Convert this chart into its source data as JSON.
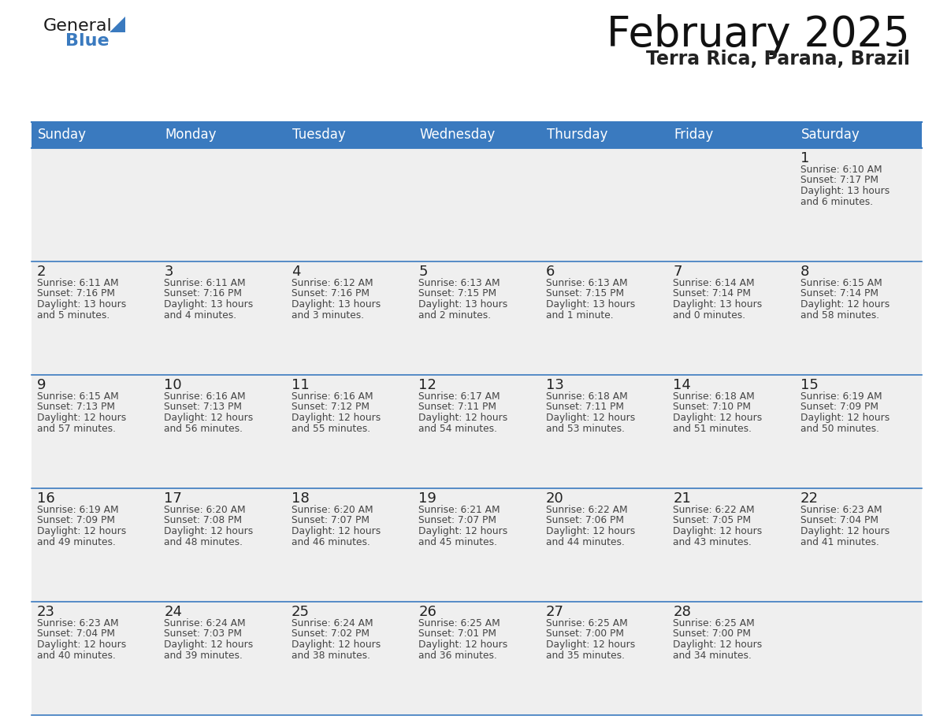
{
  "title": "February 2025",
  "subtitle": "Terra Rica, Parana, Brazil",
  "header_color": "#3a7abf",
  "header_text_color": "#ffffff",
  "day_names": [
    "Sunday",
    "Monday",
    "Tuesday",
    "Wednesday",
    "Thursday",
    "Friday",
    "Saturday"
  ],
  "cell_bg_color": "#efefef",
  "border_color": "#3a7abf",
  "day_num_color": "#222222",
  "info_text_color": "#444444",
  "calendar": [
    [
      null,
      null,
      null,
      null,
      null,
      null,
      {
        "day": 1,
        "sunrise": "6:10 AM",
        "sunset": "7:17 PM",
        "daylight": "13 hours\nand 6 minutes."
      }
    ],
    [
      {
        "day": 2,
        "sunrise": "6:11 AM",
        "sunset": "7:16 PM",
        "daylight": "13 hours\nand 5 minutes."
      },
      {
        "day": 3,
        "sunrise": "6:11 AM",
        "sunset": "7:16 PM",
        "daylight": "13 hours\nand 4 minutes."
      },
      {
        "day": 4,
        "sunrise": "6:12 AM",
        "sunset": "7:16 PM",
        "daylight": "13 hours\nand 3 minutes."
      },
      {
        "day": 5,
        "sunrise": "6:13 AM",
        "sunset": "7:15 PM",
        "daylight": "13 hours\nand 2 minutes."
      },
      {
        "day": 6,
        "sunrise": "6:13 AM",
        "sunset": "7:15 PM",
        "daylight": "13 hours\nand 1 minute."
      },
      {
        "day": 7,
        "sunrise": "6:14 AM",
        "sunset": "7:14 PM",
        "daylight": "13 hours\nand 0 minutes."
      },
      {
        "day": 8,
        "sunrise": "6:15 AM",
        "sunset": "7:14 PM",
        "daylight": "12 hours\nand 58 minutes."
      }
    ],
    [
      {
        "day": 9,
        "sunrise": "6:15 AM",
        "sunset": "7:13 PM",
        "daylight": "12 hours\nand 57 minutes."
      },
      {
        "day": 10,
        "sunrise": "6:16 AM",
        "sunset": "7:13 PM",
        "daylight": "12 hours\nand 56 minutes."
      },
      {
        "day": 11,
        "sunrise": "6:16 AM",
        "sunset": "7:12 PM",
        "daylight": "12 hours\nand 55 minutes."
      },
      {
        "day": 12,
        "sunrise": "6:17 AM",
        "sunset": "7:11 PM",
        "daylight": "12 hours\nand 54 minutes."
      },
      {
        "day": 13,
        "sunrise": "6:18 AM",
        "sunset": "7:11 PM",
        "daylight": "12 hours\nand 53 minutes."
      },
      {
        "day": 14,
        "sunrise": "6:18 AM",
        "sunset": "7:10 PM",
        "daylight": "12 hours\nand 51 minutes."
      },
      {
        "day": 15,
        "sunrise": "6:19 AM",
        "sunset": "7:09 PM",
        "daylight": "12 hours\nand 50 minutes."
      }
    ],
    [
      {
        "day": 16,
        "sunrise": "6:19 AM",
        "sunset": "7:09 PM",
        "daylight": "12 hours\nand 49 minutes."
      },
      {
        "day": 17,
        "sunrise": "6:20 AM",
        "sunset": "7:08 PM",
        "daylight": "12 hours\nand 48 minutes."
      },
      {
        "day": 18,
        "sunrise": "6:20 AM",
        "sunset": "7:07 PM",
        "daylight": "12 hours\nand 46 minutes."
      },
      {
        "day": 19,
        "sunrise": "6:21 AM",
        "sunset": "7:07 PM",
        "daylight": "12 hours\nand 45 minutes."
      },
      {
        "day": 20,
        "sunrise": "6:22 AM",
        "sunset": "7:06 PM",
        "daylight": "12 hours\nand 44 minutes."
      },
      {
        "day": 21,
        "sunrise": "6:22 AM",
        "sunset": "7:05 PM",
        "daylight": "12 hours\nand 43 minutes."
      },
      {
        "day": 22,
        "sunrise": "6:23 AM",
        "sunset": "7:04 PM",
        "daylight": "12 hours\nand 41 minutes."
      }
    ],
    [
      {
        "day": 23,
        "sunrise": "6:23 AM",
        "sunset": "7:04 PM",
        "daylight": "12 hours\nand 40 minutes."
      },
      {
        "day": 24,
        "sunrise": "6:24 AM",
        "sunset": "7:03 PM",
        "daylight": "12 hours\nand 39 minutes."
      },
      {
        "day": 25,
        "sunrise": "6:24 AM",
        "sunset": "7:02 PM",
        "daylight": "12 hours\nand 38 minutes."
      },
      {
        "day": 26,
        "sunrise": "6:25 AM",
        "sunset": "7:01 PM",
        "daylight": "12 hours\nand 36 minutes."
      },
      {
        "day": 27,
        "sunrise": "6:25 AM",
        "sunset": "7:00 PM",
        "daylight": "12 hours\nand 35 minutes."
      },
      {
        "day": 28,
        "sunrise": "6:25 AM",
        "sunset": "7:00 PM",
        "daylight": "12 hours\nand 34 minutes."
      },
      null
    ]
  ],
  "logo_triangle_color": "#3a7abf",
  "title_fontsize": 38,
  "subtitle_fontsize": 17,
  "header_fontsize": 12,
  "day_num_fontsize": 13,
  "info_fontsize": 8.8
}
